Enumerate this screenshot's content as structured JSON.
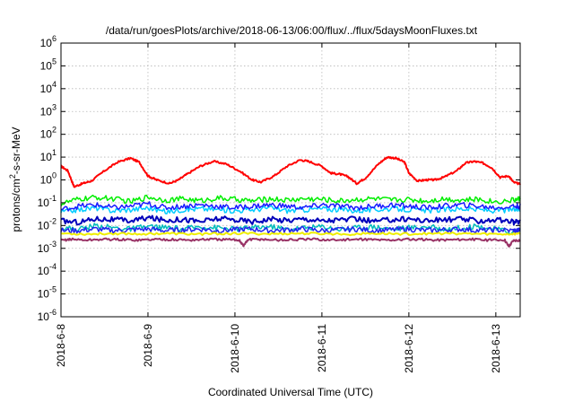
{
  "chart_data": {
    "type": "line",
    "title": "/data/run/goesPlots/archive/2018-06-13/06:00/flux/../flux/5daysMoonFluxes.txt",
    "xlabel": "Coordinated Universal Time (UTC)",
    "ylabel": {
      "prefix": "protons/cm",
      "sup": "2",
      "suffix": "-s-sr-MeV"
    },
    "x_unit": "days since 2018-6-8 00:00 UTC",
    "xlim": [
      0,
      5.28
    ],
    "ylim": [
      1e-06,
      1000000.0
    ],
    "y_scale": "log",
    "grid": true,
    "x_ticks": [
      {
        "value": 0,
        "label": "2018-6-8"
      },
      {
        "value": 1,
        "label": "2018-6-9"
      },
      {
        "value": 2,
        "label": "2018-6-10"
      },
      {
        "value": 3,
        "label": "2018-6-11"
      },
      {
        "value": 4,
        "label": "2018-6-12"
      },
      {
        "value": 5,
        "label": "2018-6-13"
      }
    ],
    "y_ticks": [
      {
        "value": 1e-06,
        "base": "10",
        "exp": "-6"
      },
      {
        "value": 1e-05,
        "base": "10",
        "exp": "-5"
      },
      {
        "value": 0.0001,
        "base": "10",
        "exp": "-4"
      },
      {
        "value": 0.001,
        "base": "10",
        "exp": "-3"
      },
      {
        "value": 0.01,
        "base": "10",
        "exp": "-2"
      },
      {
        "value": 0.1,
        "base": "10",
        "exp": "-1"
      },
      {
        "value": 1,
        "base": "10",
        "exp": "0"
      },
      {
        "value": 10,
        "base": "10",
        "exp": "1"
      },
      {
        "value": 100,
        "base": "10",
        "exp": "2"
      },
      {
        "value": 1000,
        "base": "10",
        "exp": "3"
      },
      {
        "value": 10000,
        "base": "10",
        "exp": "4"
      },
      {
        "value": 100000,
        "base": "10",
        "exp": "5"
      },
      {
        "value": 1000000,
        "base": "10",
        "exp": "6"
      }
    ],
    "series": [
      {
        "color": "#ff0000",
        "width": 2,
        "x": [
          0,
          0.08,
          0.15,
          0.25,
          0.35,
          0.5,
          0.65,
          0.8,
          0.9,
          1.0,
          1.1,
          1.25,
          1.35,
          1.45,
          1.6,
          1.75,
          1.9,
          2.05,
          2.2,
          2.3,
          2.45,
          2.6,
          2.75,
          2.85,
          3.0,
          3.1,
          3.2,
          3.3,
          3.4,
          3.5,
          3.65,
          3.75,
          3.85,
          3.95,
          4.0,
          4.1,
          4.2,
          4.3,
          4.4,
          4.55,
          4.65,
          4.75,
          4.85,
          4.95,
          5.05,
          5.15,
          5.2,
          5.28
        ],
        "values": [
          4.0,
          2.5,
          0.5,
          0.7,
          0.9,
          2.5,
          6.0,
          9.0,
          6.0,
          1.5,
          1.0,
          0.7,
          1.0,
          1.8,
          4.0,
          6.5,
          5.0,
          2.5,
          1.0,
          0.8,
          1.5,
          4.0,
          7.5,
          6.5,
          4.0,
          2.0,
          1.8,
          1.4,
          0.7,
          1.2,
          5.0,
          10.0,
          9.0,
          6.0,
          2.0,
          0.9,
          1.0,
          1.0,
          1.3,
          2.5,
          5.5,
          6.5,
          5.5,
          3.5,
          1.3,
          1.5,
          0.8,
          0.65
        ]
      },
      {
        "color": "#00ee00",
        "width": 1.5,
        "x": [
          0,
          0.2,
          0.4,
          0.6,
          0.8,
          1.0,
          1.2,
          1.4,
          1.6,
          1.8,
          2.0,
          2.2,
          2.4,
          2.6,
          2.8,
          3.0,
          3.2,
          3.4,
          3.6,
          3.8,
          4.0,
          4.2,
          4.4,
          4.6,
          4.8,
          5.0,
          5.2,
          5.28
        ],
        "values": [
          0.09,
          0.14,
          0.17,
          0.15,
          0.11,
          0.18,
          0.13,
          0.15,
          0.12,
          0.16,
          0.14,
          0.12,
          0.15,
          0.13,
          0.15,
          0.14,
          0.12,
          0.14,
          0.15,
          0.13,
          0.14,
          0.12,
          0.15,
          0.13,
          0.14,
          0.11,
          0.13,
          0.15
        ]
      },
      {
        "color": "#00ccff",
        "width": 1.5,
        "x": [
          0,
          0.2,
          0.4,
          0.6,
          0.8,
          1.0,
          1.2,
          1.4,
          1.6,
          1.8,
          2.0,
          2.2,
          2.4,
          2.6,
          2.8,
          3.0,
          3.2,
          3.4,
          3.6,
          3.8,
          4.0,
          4.2,
          4.4,
          4.6,
          4.8,
          5.0,
          5.2,
          5.28
        ],
        "values": [
          0.04,
          0.05,
          0.06,
          0.045,
          0.05,
          0.06,
          0.04,
          0.05,
          0.055,
          0.05,
          0.045,
          0.05,
          0.06,
          0.045,
          0.05,
          0.055,
          0.05,
          0.045,
          0.05,
          0.055,
          0.05,
          0.045,
          0.05,
          0.055,
          0.05,
          0.045,
          0.05,
          0.05
        ]
      },
      {
        "color": "#1a1aff",
        "width": 1.5,
        "x": [
          0,
          0.2,
          0.4,
          0.6,
          0.8,
          1.0,
          1.2,
          1.4,
          1.6,
          1.8,
          2.0,
          2.2,
          2.4,
          2.6,
          2.8,
          3.0,
          3.2,
          3.4,
          3.6,
          3.8,
          4.0,
          4.2,
          4.4,
          4.6,
          4.8,
          5.0,
          5.2,
          5.28
        ],
        "values": [
          0.05,
          0.07,
          0.08,
          0.06,
          0.07,
          0.09,
          0.06,
          0.07,
          0.08,
          0.07,
          0.06,
          0.07,
          0.08,
          0.07,
          0.06,
          0.08,
          0.07,
          0.06,
          0.07,
          0.08,
          0.07,
          0.06,
          0.07,
          0.08,
          0.07,
          0.06,
          0.07,
          0.07
        ]
      },
      {
        "color": "#0000bb",
        "width": 2,
        "x": [
          0,
          0.2,
          0.4,
          0.6,
          0.8,
          1.0,
          1.2,
          1.4,
          1.6,
          1.8,
          2.0,
          2.2,
          2.4,
          2.6,
          2.8,
          3.0,
          3.2,
          3.4,
          3.6,
          3.8,
          4.0,
          4.2,
          4.4,
          4.6,
          4.8,
          5.0,
          5.2,
          5.28
        ],
        "values": [
          0.016,
          0.014,
          0.02,
          0.018,
          0.016,
          0.022,
          0.017,
          0.019,
          0.015,
          0.02,
          0.018,
          0.015,
          0.019,
          0.017,
          0.02,
          0.016,
          0.018,
          0.019,
          0.015,
          0.018,
          0.02,
          0.016,
          0.018,
          0.019,
          0.016,
          0.018,
          0.014,
          0.015
        ]
      },
      {
        "color": "#00bbbb",
        "width": 1.5,
        "x": [
          0,
          0.2,
          0.4,
          0.6,
          0.8,
          1.0,
          1.2,
          1.4,
          1.6,
          1.8,
          2.0,
          2.2,
          2.4,
          2.6,
          2.8,
          3.0,
          3.2,
          3.4,
          3.6,
          3.8,
          4.0,
          4.2,
          4.4,
          4.6,
          4.8,
          5.0,
          5.2,
          5.28
        ],
        "values": [
          0.008,
          0.007,
          0.01,
          0.008,
          0.007,
          0.009,
          0.008,
          0.007,
          0.009,
          0.008,
          0.007,
          0.008,
          0.009,
          0.007,
          0.008,
          0.009,
          0.007,
          0.008,
          0.009,
          0.007,
          0.008,
          0.009,
          0.007,
          0.008,
          0.009,
          0.007,
          0.005,
          0.007
        ]
      },
      {
        "color": "#2222ee",
        "width": 1.5,
        "x": [
          0,
          0.2,
          0.4,
          0.6,
          0.8,
          1.0,
          1.2,
          1.4,
          1.6,
          1.8,
          2.0,
          2.2,
          2.4,
          2.6,
          2.8,
          3.0,
          3.2,
          3.4,
          3.6,
          3.8,
          4.0,
          4.2,
          4.4,
          4.6,
          4.8,
          5.0,
          5.2,
          5.28
        ],
        "values": [
          0.006,
          0.006,
          0.007,
          0.006,
          0.0065,
          0.007,
          0.006,
          0.0065,
          0.007,
          0.006,
          0.0065,
          0.007,
          0.006,
          0.0065,
          0.007,
          0.006,
          0.0065,
          0.007,
          0.006,
          0.0065,
          0.007,
          0.006,
          0.0065,
          0.007,
          0.006,
          0.0065,
          0.006,
          0.006
        ]
      },
      {
        "color": "#eeee00",
        "width": 2,
        "x": [
          0,
          0.3,
          0.6,
          0.9,
          1.2,
          1.5,
          1.8,
          2.1,
          2.4,
          2.7,
          3.0,
          3.3,
          3.6,
          3.9,
          4.2,
          4.5,
          4.8,
          5.1,
          5.28
        ],
        "values": [
          0.0045,
          0.0042,
          0.0045,
          0.0043,
          0.0045,
          0.0042,
          0.0044,
          0.0045,
          0.0043,
          0.0045,
          0.0044,
          0.0042,
          0.0045,
          0.0043,
          0.0044,
          0.0045,
          0.0043,
          0.0042,
          0.0044
        ]
      },
      {
        "color": "#993366",
        "width": 2,
        "x": [
          0,
          0.1,
          0.3,
          0.5,
          0.7,
          0.9,
          1.1,
          1.3,
          1.5,
          1.7,
          1.9,
          2.05,
          2.1,
          2.15,
          2.3,
          2.5,
          2.7,
          2.9,
          3.1,
          3.3,
          3.5,
          3.7,
          3.9,
          4.1,
          4.3,
          4.5,
          4.7,
          4.9,
          5.1,
          5.15,
          5.2,
          5.28
        ],
        "values": [
          0.0022,
          0.0025,
          0.0023,
          0.0025,
          0.0024,
          0.0023,
          0.0025,
          0.0024,
          0.0023,
          0.0025,
          0.0024,
          0.0023,
          0.0013,
          0.0024,
          0.0025,
          0.0023,
          0.0024,
          0.0025,
          0.0023,
          0.0024,
          0.0025,
          0.0023,
          0.0024,
          0.0025,
          0.0023,
          0.0024,
          0.0025,
          0.0023,
          0.0024,
          0.0012,
          0.0022,
          0.0023
        ]
      }
    ]
  }
}
